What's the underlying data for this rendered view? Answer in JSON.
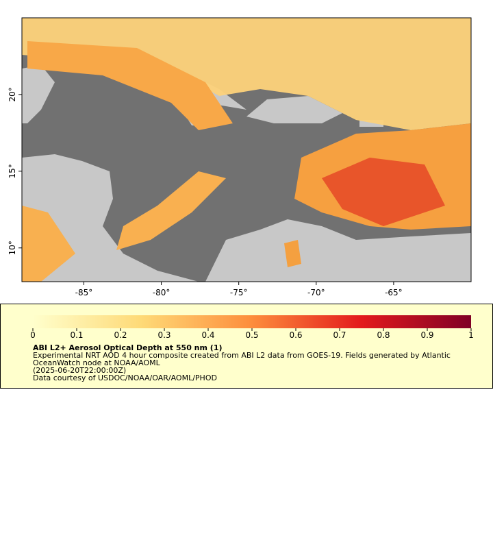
{
  "chart_data": {
    "type": "map",
    "xlim": [
      -89,
      -60
    ],
    "ylim": [
      7.8,
      25
    ],
    "xticks": [
      {
        "value": -85,
        "label": "-85°"
      },
      {
        "value": -80,
        "label": "-80°"
      },
      {
        "value": -75,
        "label": "-75°"
      },
      {
        "value": -70,
        "label": "-70°"
      },
      {
        "value": -65,
        "label": "-65°"
      }
    ],
    "yticks": [
      {
        "value": 10,
        "label": "10°"
      },
      {
        "value": 15,
        "label": "15°"
      },
      {
        "value": 20,
        "label": "20°"
      }
    ],
    "colorbar": {
      "lim": [
        0,
        1
      ],
      "ticks": [
        0,
        0.1,
        0.2,
        0.3,
        0.4,
        0.5,
        0.6,
        0.7,
        0.8,
        0.9,
        1
      ],
      "colors": [
        "#ffffcc",
        "#fed976",
        "#fd8d3c",
        "#e31a1c",
        "#800026"
      ]
    },
    "title": "ABI L2+ Aerosol Optical Depth at 550 nm (1)",
    "description": [
      "Experimental NRT AOD 4 hour composite created from ABI L2 data from GOES-19. Fields generated by Atlantic",
      "OceanWatch node at NOAA/AOML",
      "(2025-06-20T22:00:00Z)",
      "Data courtesy of USDOC/NOAA/OAR/AOML/PHOD"
    ]
  }
}
